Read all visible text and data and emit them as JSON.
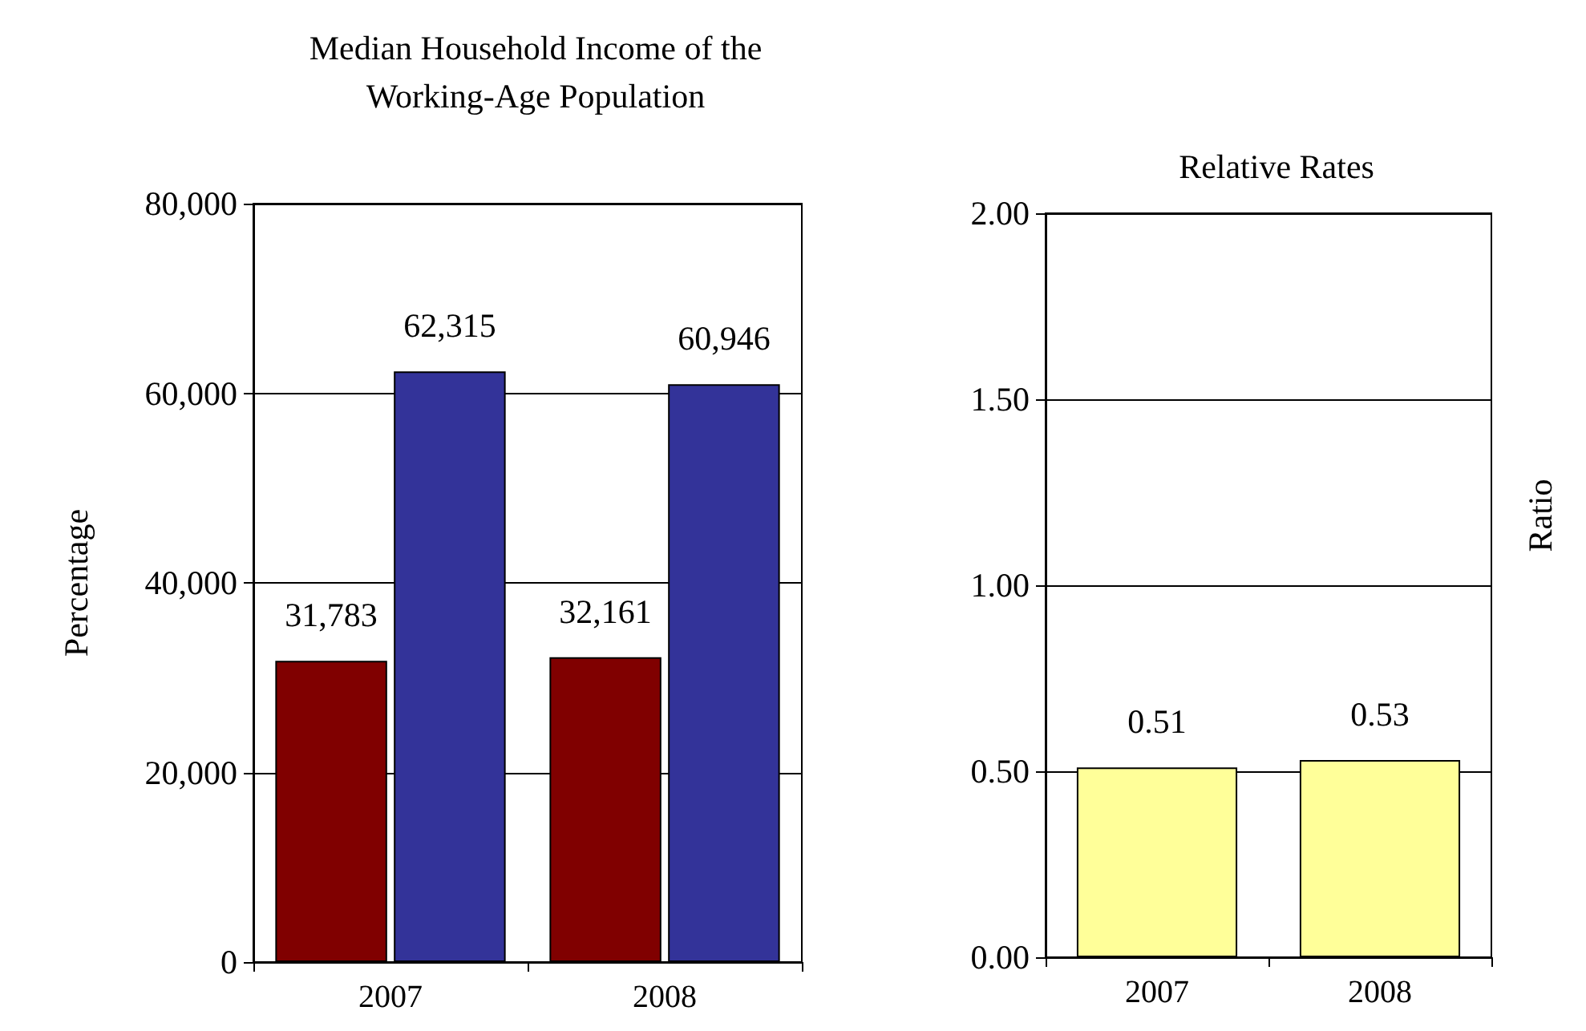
{
  "chart_data": [
    {
      "type": "bar",
      "title": "Median Household Income of the\nWorking-Age Population",
      "ylabel": "Percentage",
      "categories": [
        "2007",
        "2008"
      ],
      "series": [
        {
          "color": "#800000",
          "values": [
            31783,
            32161
          ],
          "value_labels": [
            "31,783",
            "32,161"
          ]
        },
        {
          "color": "#333399",
          "values": [
            62315,
            60946
          ],
          "value_labels": [
            "62,315",
            "60,946"
          ]
        }
      ],
      "ylim": [
        0,
        80000
      ],
      "yticks": [
        0,
        {
          "value": 20000,
          "label": "20,000"
        },
        {
          "value": 40000,
          "label": "40,000"
        },
        {
          "value": 60000,
          "label": "60,000"
        },
        {
          "value": 80000,
          "label": "80,000"
        }
      ],
      "grid": "y"
    },
    {
      "type": "bar",
      "title": "Relative Rates",
      "ylabel": "Ratio",
      "categories": [
        "2007",
        "2008"
      ],
      "series": [
        {
          "color": "#ffff99",
          "values": [
            0.51,
            0.53
          ]
        }
      ],
      "data_labels": true,
      "ylim": [
        0,
        2
      ],
      "yticks": [
        {
          "value": 0,
          "label": "0.00"
        },
        {
          "value": 0.5,
          "label": "0.50"
        },
        {
          "value": 1,
          "label": "1.00"
        },
        {
          "value": 1.5,
          "label": "1.50"
        },
        {
          "value": 2,
          "label": "2.00"
        }
      ],
      "grid": "y"
    }
  ]
}
